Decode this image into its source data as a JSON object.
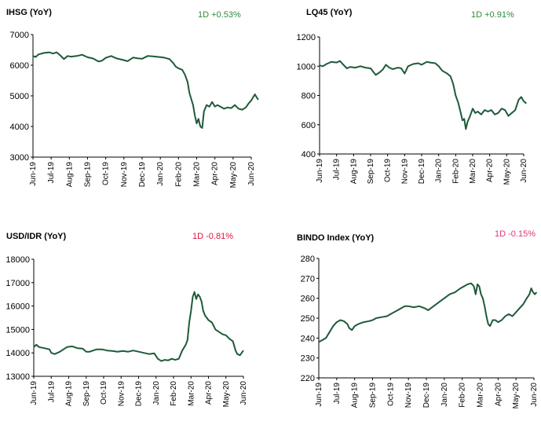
{
  "chart_data": [
    {
      "type": "line",
      "title": "IHSG (YoY)",
      "change": {
        "text": "1D +0.53%",
        "color": "#2e8b3c"
      },
      "ylim": [
        3000,
        7000
      ],
      "yticks": [
        "7000",
        "6000",
        "5000",
        "4000",
        "3000"
      ],
      "xlabels": [
        "Jun-19",
        "Jul-19",
        "Aug-19",
        "Sep-19",
        "Oct-19",
        "Nov-19",
        "Dec-19",
        "Jan-20",
        "Feb-20",
        "Mar-20",
        "Apr-20",
        "May-20",
        "Jun-20"
      ],
      "line_color": "#1f5a3a",
      "series": [
        {
          "values": [
            [
              0,
              6300
            ],
            [
              0.15,
              6270
            ],
            [
              0.3,
              6350
            ],
            [
              0.6,
              6400
            ],
            [
              0.9,
              6420
            ],
            [
              1.1,
              6380
            ],
            [
              1.3,
              6420
            ],
            [
              1.5,
              6320
            ],
            [
              1.7,
              6200
            ],
            [
              1.9,
              6300
            ],
            [
              2.1,
              6280
            ],
            [
              2.4,
              6300
            ],
            [
              2.7,
              6340
            ],
            [
              3.0,
              6260
            ],
            [
              3.3,
              6220
            ],
            [
              3.6,
              6120
            ],
            [
              3.8,
              6150
            ],
            [
              4.0,
              6240
            ],
            [
              4.3,
              6300
            ],
            [
              4.6,
              6220
            ],
            [
              4.9,
              6180
            ],
            [
              5.2,
              6130
            ],
            [
              5.5,
              6250
            ],
            [
              5.8,
              6220
            ],
            [
              6.0,
              6210
            ],
            [
              6.3,
              6300
            ],
            [
              6.6,
              6290
            ],
            [
              6.9,
              6270
            ],
            [
              7.2,
              6250
            ],
            [
              7.5,
              6200
            ],
            [
              7.7,
              6080
            ],
            [
              7.85,
              5950
            ],
            [
              8.0,
              5900
            ],
            [
              8.2,
              5850
            ],
            [
              8.35,
              5700
            ],
            [
              8.5,
              5450
            ],
            [
              8.6,
              5100
            ],
            [
              8.7,
              4900
            ],
            [
              8.8,
              4700
            ],
            [
              8.9,
              4350
            ],
            [
              9.0,
              4100
            ],
            [
              9.1,
              4250
            ],
            [
              9.2,
              4000
            ],
            [
              9.3,
              3950
            ],
            [
              9.4,
              4500
            ],
            [
              9.55,
              4700
            ],
            [
              9.7,
              4650
            ],
            [
              9.85,
              4800
            ],
            [
              10.0,
              4650
            ],
            [
              10.15,
              4700
            ],
            [
              10.3,
              4650
            ],
            [
              10.5,
              4580
            ],
            [
              10.7,
              4620
            ],
            [
              10.9,
              4600
            ],
            [
              11.1,
              4700
            ],
            [
              11.3,
              4580
            ],
            [
              11.5,
              4550
            ],
            [
              11.7,
              4620
            ],
            [
              11.85,
              4750
            ],
            [
              12.0,
              4850
            ],
            [
              12.2,
              5050
            ],
            [
              12.35,
              4900
            ],
            [
              12.4,
              4880
            ]
          ]
        }
      ]
    },
    {
      "type": "line",
      "title": "LQ45 (YoY)",
      "change": {
        "text": "1D +0.91%",
        "color": "#2e8b3c"
      },
      "ylim": [
        400,
        1200
      ],
      "yticks": [
        "1200",
        "1000",
        "800",
        "600",
        "400"
      ],
      "xlabels": [
        "Jun-19",
        "Jul-19",
        "Aug-19",
        "Sep-19",
        "Oct-19",
        "Nov-19",
        "Dec-19",
        "Jan-20",
        "Feb-20",
        "Mar-20",
        "Apr-20",
        "May-20",
        "Jun-20"
      ],
      "line_color": "#1f5a3a",
      "series": [
        {
          "values": [
            [
              0,
              1005
            ],
            [
              0.2,
              1000
            ],
            [
              0.4,
              1015
            ],
            [
              0.7,
              1030
            ],
            [
              1.0,
              1025
            ],
            [
              1.2,
              1035
            ],
            [
              1.4,
              1010
            ],
            [
              1.6,
              985
            ],
            [
              1.8,
              995
            ],
            [
              2.1,
              990
            ],
            [
              2.4,
              1000
            ],
            [
              2.7,
              990
            ],
            [
              3.0,
              985
            ],
            [
              3.3,
              940
            ],
            [
              3.5,
              955
            ],
            [
              3.7,
              975
            ],
            [
              3.9,
              1010
            ],
            [
              4.1,
              990
            ],
            [
              4.3,
              980
            ],
            [
              4.6,
              990
            ],
            [
              4.8,
              985
            ],
            [
              5.0,
              950
            ],
            [
              5.2,
              1000
            ],
            [
              5.5,
              1015
            ],
            [
              5.8,
              1020
            ],
            [
              6.0,
              1010
            ],
            [
              6.3,
              1030
            ],
            [
              6.5,
              1025
            ],
            [
              6.8,
              1020
            ],
            [
              7.0,
              1000
            ],
            [
              7.2,
              970
            ],
            [
              7.35,
              960
            ],
            [
              7.5,
              950
            ],
            [
              7.7,
              930
            ],
            [
              7.85,
              880
            ],
            [
              8.0,
              800
            ],
            [
              8.15,
              750
            ],
            [
              8.3,
              680
            ],
            [
              8.4,
              630
            ],
            [
              8.5,
              640
            ],
            [
              8.6,
              570
            ],
            [
              8.7,
              620
            ],
            [
              8.85,
              660
            ],
            [
              9.0,
              710
            ],
            [
              9.15,
              680
            ],
            [
              9.3,
              690
            ],
            [
              9.5,
              670
            ],
            [
              9.7,
              700
            ],
            [
              9.9,
              690
            ],
            [
              10.1,
              700
            ],
            [
              10.3,
              670
            ],
            [
              10.5,
              680
            ],
            [
              10.7,
              710
            ],
            [
              10.9,
              700
            ],
            [
              11.1,
              660
            ],
            [
              11.3,
              680
            ],
            [
              11.5,
              700
            ],
            [
              11.7,
              770
            ],
            [
              11.85,
              790
            ],
            [
              12.0,
              760
            ],
            [
              12.15,
              745
            ]
          ]
        }
      ]
    },
    {
      "type": "line",
      "title": "USD/IDR  (YoY)",
      "change": {
        "text": "1D -0.81%",
        "color": "#e0123c"
      },
      "ylim": [
        13000,
        18000
      ],
      "yticks": [
        "18000",
        "17000",
        "16000",
        "15000",
        "14000",
        "13000"
      ],
      "xlabels": [
        "Jun-19",
        "Jul-19",
        "Aug-19",
        "Sep-19",
        "Oct-19",
        "Nov-19",
        "Dec-19",
        "Jan-20",
        "Feb-20",
        "Mar-20",
        "Apr-20",
        "May-20",
        "Jun-20"
      ],
      "line_color": "#1f5a3a",
      "series": [
        {
          "values": [
            [
              0,
              14250
            ],
            [
              0.15,
              14350
            ],
            [
              0.3,
              14250
            ],
            [
              0.6,
              14200
            ],
            [
              0.9,
              14150
            ],
            [
              1.0,
              14000
            ],
            [
              1.2,
              13950
            ],
            [
              1.5,
              14050
            ],
            [
              1.7,
              14150
            ],
            [
              1.9,
              14250
            ],
            [
              2.2,
              14280
            ],
            [
              2.5,
              14200
            ],
            [
              2.8,
              14180
            ],
            [
              3.0,
              14050
            ],
            [
              3.2,
              14050
            ],
            [
              3.4,
              14100
            ],
            [
              3.6,
              14150
            ],
            [
              3.9,
              14150
            ],
            [
              4.2,
              14100
            ],
            [
              4.5,
              14080
            ],
            [
              4.8,
              14050
            ],
            [
              5.1,
              14080
            ],
            [
              5.4,
              14050
            ],
            [
              5.7,
              14100
            ],
            [
              6.0,
              14050
            ],
            [
              6.3,
              14000
            ],
            [
              6.6,
              13950
            ],
            [
              6.9,
              13980
            ],
            [
              7.1,
              13750
            ],
            [
              7.3,
              13650
            ],
            [
              7.5,
              13700
            ],
            [
              7.7,
              13680
            ],
            [
              7.9,
              13750
            ],
            [
              8.1,
              13700
            ],
            [
              8.3,
              13750
            ],
            [
              8.5,
              14100
            ],
            [
              8.7,
              14350
            ],
            [
              8.8,
              14550
            ],
            [
              8.9,
              15300
            ],
            [
              9.0,
              15800
            ],
            [
              9.1,
              16400
            ],
            [
              9.2,
              16600
            ],
            [
              9.3,
              16300
            ],
            [
              9.4,
              16500
            ],
            [
              9.5,
              16400
            ],
            [
              9.6,
              16200
            ],
            [
              9.7,
              15800
            ],
            [
              9.8,
              15600
            ],
            [
              10.0,
              15400
            ],
            [
              10.2,
              15300
            ],
            [
              10.4,
              15000
            ],
            [
              10.6,
              14900
            ],
            [
              10.8,
              14800
            ],
            [
              11.0,
              14750
            ],
            [
              11.2,
              14600
            ],
            [
              11.4,
              14500
            ],
            [
              11.55,
              14100
            ],
            [
              11.65,
              13950
            ],
            [
              11.8,
              13900
            ],
            [
              11.9,
              14000
            ],
            [
              12.0,
              14100
            ]
          ]
        }
      ]
    },
    {
      "type": "line",
      "title": "BINDO Index (YoY)",
      "change": {
        "text": "1D -0.15%",
        "color": "#e0357c"
      },
      "ylim": [
        220,
        280
      ],
      "yticks": [
        "280",
        "270",
        "260",
        "250",
        "240",
        "230",
        "220"
      ],
      "xlabels": [
        "Jun-19",
        "Jul-19",
        "Aug-19",
        "Sep-19",
        "Oct-19",
        "Nov-19",
        "Dec-19",
        "Jan-20",
        "Feb-20",
        "Mar-20",
        "Apr-20",
        "May-20",
        "Jun-20"
      ],
      "line_color": "#1f5a3a",
      "series": [
        {
          "values": [
            [
              0,
              238
            ],
            [
              0.2,
              239
            ],
            [
              0.4,
              240
            ],
            [
              0.6,
              243
            ],
            [
              0.8,
              246
            ],
            [
              1.0,
              248
            ],
            [
              1.2,
              249
            ],
            [
              1.4,
              248.5
            ],
            [
              1.6,
              247
            ],
            [
              1.7,
              245
            ],
            [
              1.85,
              244
            ],
            [
              2.0,
              246
            ],
            [
              2.2,
              247
            ],
            [
              2.5,
              248
            ],
            [
              2.8,
              248.5
            ],
            [
              3.0,
              249
            ],
            [
              3.2,
              250
            ],
            [
              3.5,
              250.5
            ],
            [
              3.8,
              251
            ],
            [
              4.0,
              252
            ],
            [
              4.2,
              253
            ],
            [
              4.4,
              254
            ],
            [
              4.6,
              255
            ],
            [
              4.8,
              256
            ],
            [
              5.0,
              256
            ],
            [
              5.3,
              255.5
            ],
            [
              5.6,
              256
            ],
            [
              5.9,
              255
            ],
            [
              6.1,
              254
            ],
            [
              6.4,
              256
            ],
            [
              6.7,
              258
            ],
            [
              7.0,
              260
            ],
            [
              7.3,
              262
            ],
            [
              7.6,
              263
            ],
            [
              7.9,
              265
            ],
            [
              8.1,
              266
            ],
            [
              8.3,
              267
            ],
            [
              8.5,
              267.5
            ],
            [
              8.65,
              266
            ],
            [
              8.75,
              262
            ],
            [
              8.85,
              267
            ],
            [
              8.95,
              266
            ],
            [
              9.05,
              262
            ],
            [
              9.15,
              260
            ],
            [
              9.25,
              256
            ],
            [
              9.35,
              251
            ],
            [
              9.45,
              247
            ],
            [
              9.55,
              246
            ],
            [
              9.7,
              249
            ],
            [
              9.85,
              249
            ],
            [
              10.0,
              248
            ],
            [
              10.2,
              249
            ],
            [
              10.4,
              251
            ],
            [
              10.6,
              252
            ],
            [
              10.8,
              251
            ],
            [
              11.0,
              253
            ],
            [
              11.2,
              255
            ],
            [
              11.4,
              257
            ],
            [
              11.6,
              260
            ],
            [
              11.75,
              262
            ],
            [
              11.85,
              265
            ],
            [
              11.95,
              263
            ],
            [
              12.05,
              262
            ],
            [
              12.15,
              263
            ]
          ]
        }
      ]
    }
  ]
}
